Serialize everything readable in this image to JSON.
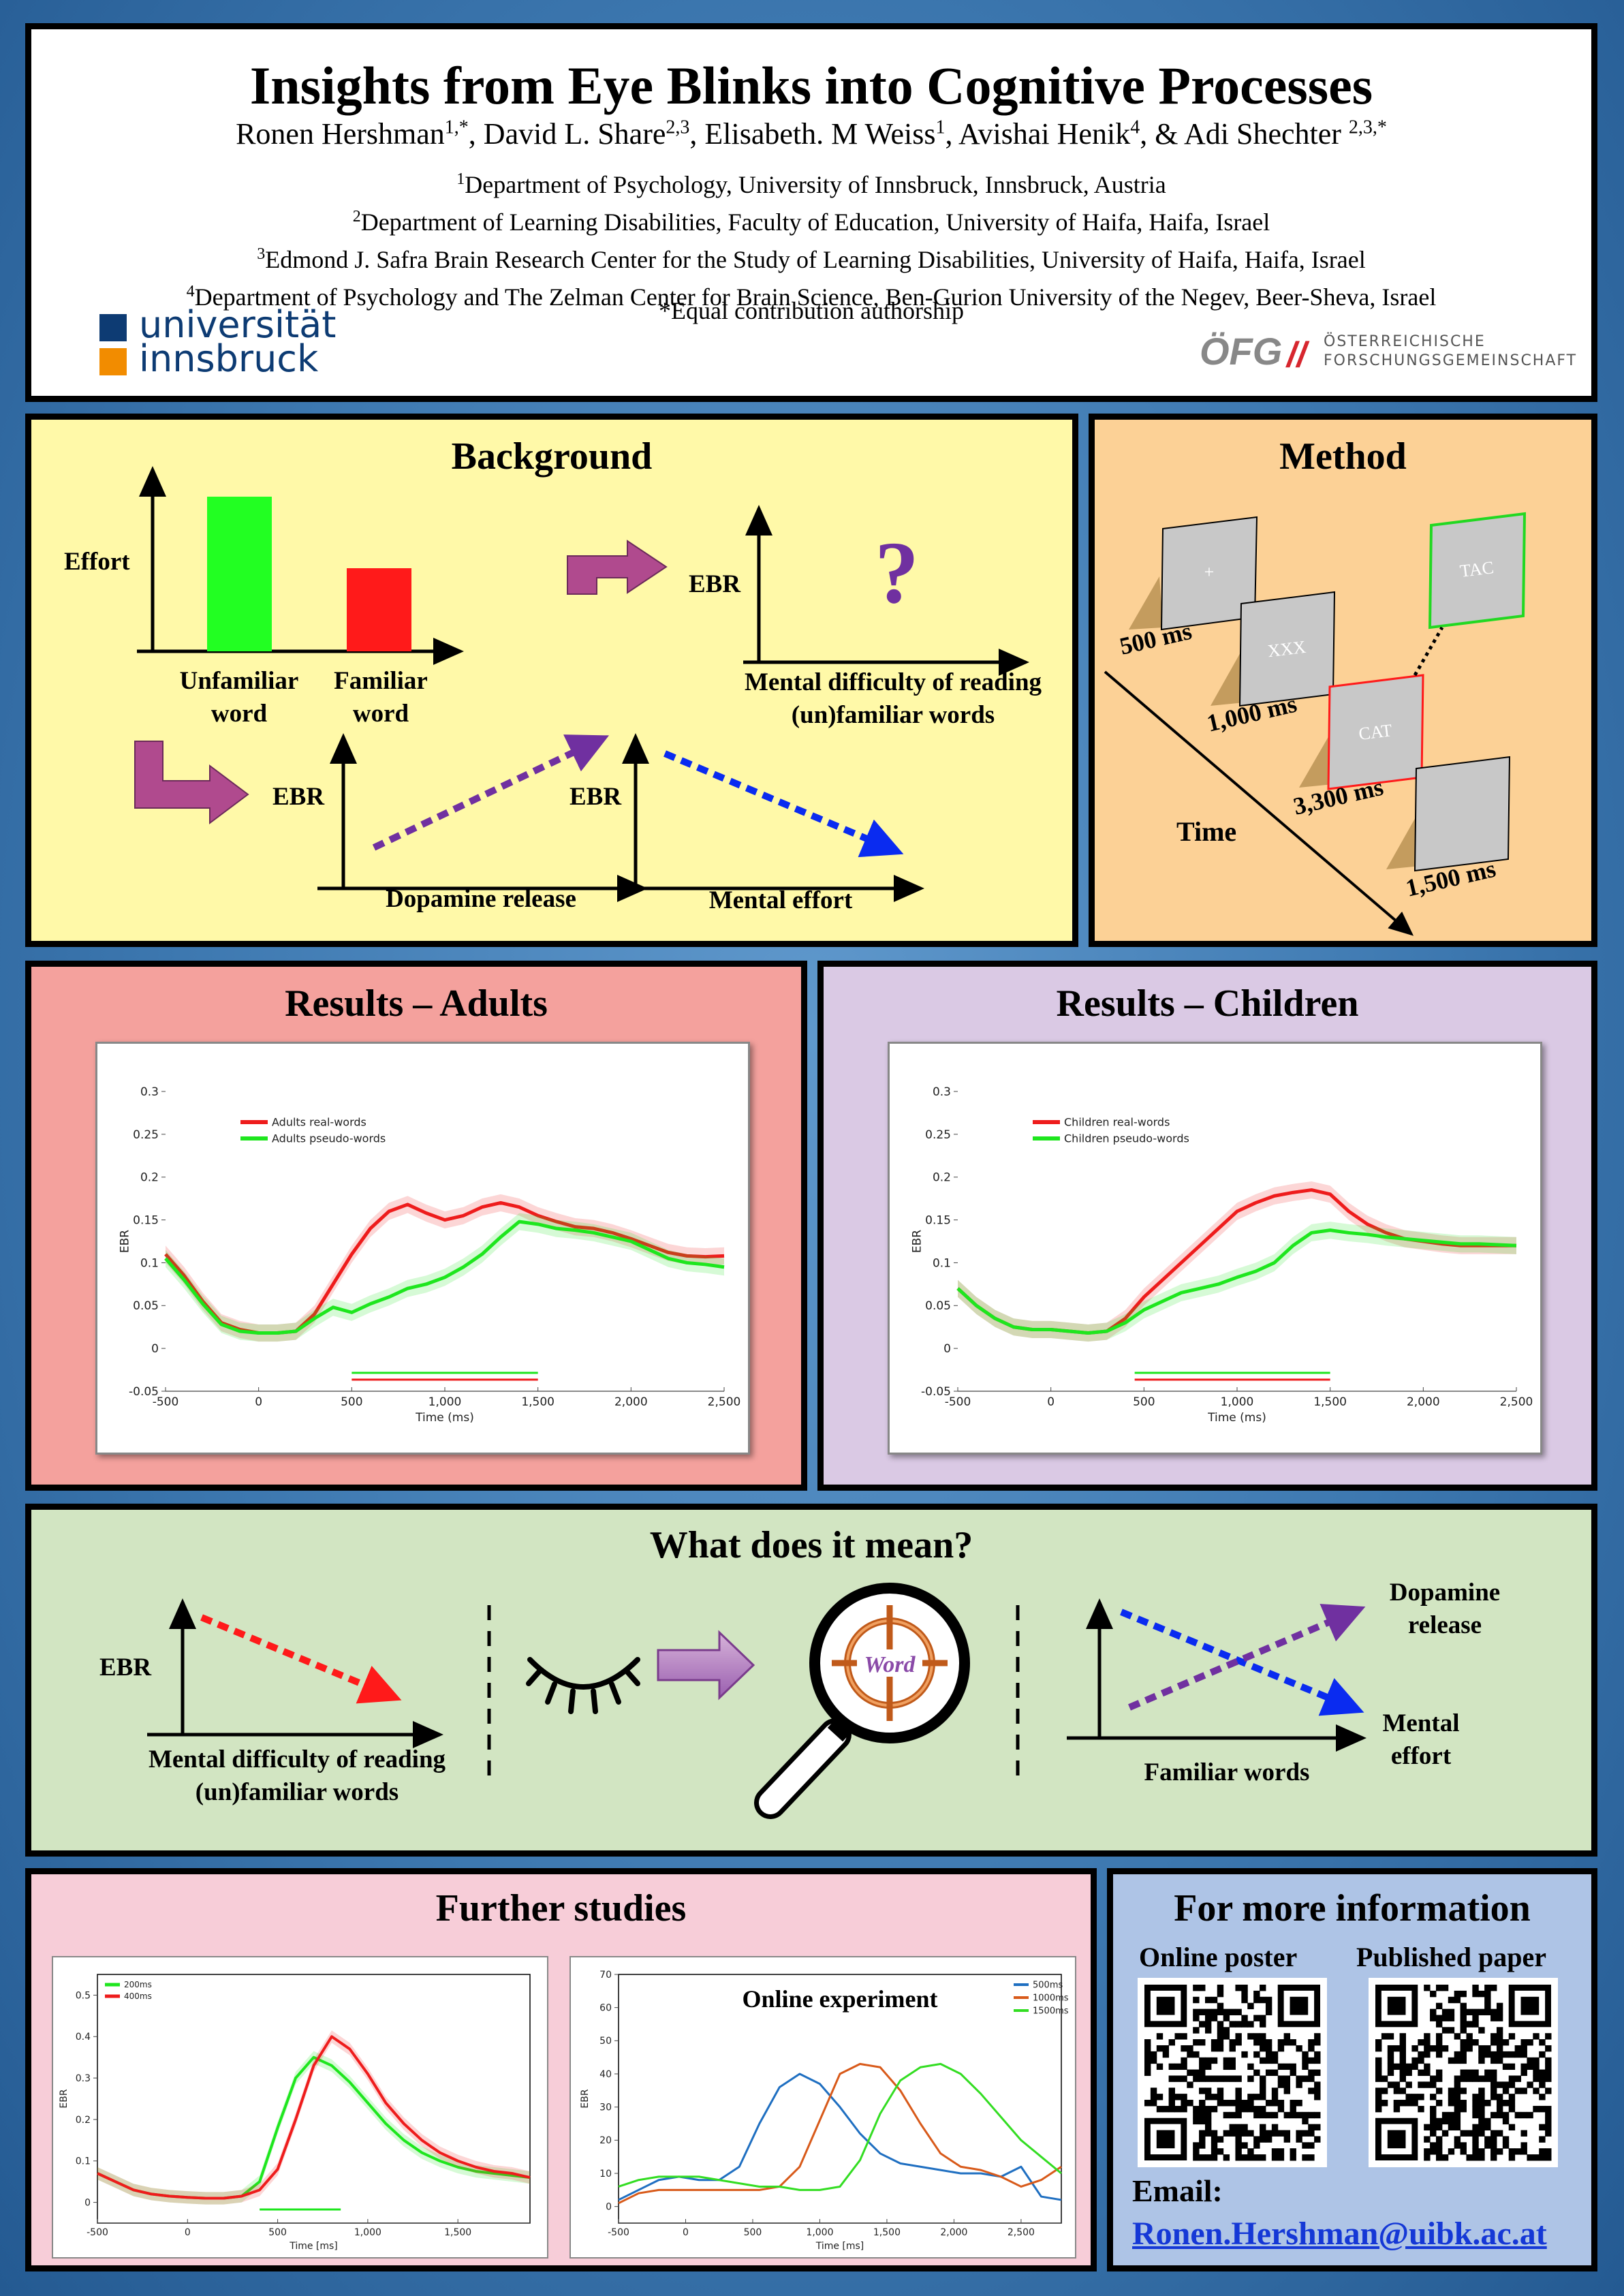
{
  "header": {
    "title": "Insights from Eye Blinks into Cognitive Processes",
    "authors": [
      {
        "name": "Ronen Hershman",
        "sup": "1,*"
      },
      {
        "name": "David L. Share",
        "sup": "2,3"
      },
      {
        "name": "Elisabeth. M Weiss",
        "sup": "1"
      },
      {
        "name": "Avishai Henik",
        "sup": "4"
      },
      {
        "name": "Adi Shechter ",
        "sup": "2,3,*"
      }
    ],
    "affiliations": [
      {
        "sup": "1",
        "text": "Department of Psychology, University of Innsbruck, Innsbruck, Austria"
      },
      {
        "sup": "2",
        "text": "Department of Learning Disabilities, Faculty of Education, University of Haifa, Haifa, Israel"
      },
      {
        "sup": "3",
        "text": "Edmond J. Safra Brain Research Center for the Study of Learning Disabilities, University of Haifa, Haifa, Israel"
      },
      {
        "sup": "4",
        "text": "Department of Psychology and The Zelman Center for Brain Science, Ben-Gurion University of the Negev, Beer-Sheva, Israel"
      }
    ],
    "equal": "*Equal contribution authorship",
    "logo_left": {
      "line1": "universität",
      "line2": "innsbruck"
    },
    "logo_right": {
      "mark": "ÖFG",
      "line1": "ÖSTERREICHISCHE",
      "line2": "FORSCHUNGSGEMEINSCHAFT"
    }
  },
  "background": {
    "title": "Background",
    "effort_label": "Effort",
    "bar1_label": "Unfamiliar word",
    "bar2_label": "Familiar word",
    "ebr": "EBR",
    "question": "?",
    "mental_difficulty": "Mental difficulty of reading (un)familiar words",
    "dopamine": "Dopamine release",
    "mental_effort": "Mental effort"
  },
  "method": {
    "title": "Method",
    "screens": [
      "+",
      "XXX",
      "CAT",
      "",
      "TAC"
    ],
    "durations": [
      "500 ms",
      "1,000 ms",
      "3,300 ms",
      "1,500 ms"
    ],
    "time": "Time"
  },
  "results_adults": {
    "title": "Results – Adults",
    "chart_data": {
      "type": "line",
      "xlabel": "Time (ms)",
      "ylabel": "EBR",
      "xlim": [
        -500,
        2500
      ],
      "ylim": [
        -0.05,
        0.3
      ],
      "xticks": [
        "-500",
        "0",
        "500",
        "1,000",
        "1,500",
        "2,000",
        "2,500"
      ],
      "yticks": [
        "-0.05",
        "0",
        "0.05",
        "0.1",
        "0.15",
        "0.2",
        "0.25",
        "0.3"
      ],
      "x": [
        -500,
        -400,
        -300,
        -200,
        -100,
        0,
        100,
        200,
        300,
        400,
        500,
        600,
        700,
        800,
        900,
        1000,
        1100,
        1200,
        1300,
        1400,
        1500,
        1600,
        1700,
        1800,
        1900,
        2000,
        2100,
        2200,
        2300,
        2400,
        2500
      ],
      "series": [
        {
          "name": "Adults real-words",
          "color": "#ee1c1c",
          "values": [
            0.11,
            0.085,
            0.055,
            0.03,
            0.022,
            0.018,
            0.018,
            0.02,
            0.04,
            0.075,
            0.11,
            0.14,
            0.16,
            0.168,
            0.158,
            0.15,
            0.155,
            0.165,
            0.17,
            0.165,
            0.155,
            0.148,
            0.142,
            0.14,
            0.135,
            0.128,
            0.12,
            0.112,
            0.108,
            0.107,
            0.108
          ]
        },
        {
          "name": "Adults pseudo-words",
          "color": "#1ee61e",
          "values": [
            0.105,
            0.08,
            0.052,
            0.028,
            0.02,
            0.018,
            0.018,
            0.02,
            0.035,
            0.048,
            0.042,
            0.052,
            0.06,
            0.07,
            0.075,
            0.083,
            0.095,
            0.11,
            0.13,
            0.148,
            0.145,
            0.14,
            0.138,
            0.135,
            0.13,
            0.125,
            0.115,
            0.105,
            0.1,
            0.098,
            0.095
          ]
        }
      ]
    }
  },
  "results_children": {
    "title": "Results –  Children",
    "chart_data": {
      "type": "line",
      "xlabel": "Time (ms)",
      "ylabel": "EBR",
      "xlim": [
        -500,
        2500
      ],
      "ylim": [
        -0.05,
        0.3
      ],
      "xticks": [
        "-500",
        "0",
        "500",
        "1,000",
        "1,500",
        "2,000",
        "2,500"
      ],
      "yticks": [
        "-0.05",
        "0",
        "0.05",
        "0.1",
        "0.15",
        "0.2",
        "0.25",
        "0.3"
      ],
      "x": [
        -500,
        -400,
        -300,
        -200,
        -100,
        0,
        100,
        200,
        300,
        400,
        500,
        600,
        700,
        800,
        900,
        1000,
        1100,
        1200,
        1300,
        1400,
        1500,
        1600,
        1700,
        1800,
        1900,
        2000,
        2100,
        2200,
        2300,
        2400,
        2500
      ],
      "series": [
        {
          "name": "Children real-words",
          "color": "#ee1c1c",
          "values": [
            0.07,
            0.05,
            0.035,
            0.025,
            0.022,
            0.022,
            0.02,
            0.018,
            0.02,
            0.035,
            0.06,
            0.08,
            0.1,
            0.12,
            0.14,
            0.16,
            0.17,
            0.178,
            0.182,
            0.185,
            0.18,
            0.16,
            0.145,
            0.135,
            0.128,
            0.125,
            0.122,
            0.12,
            0.12,
            0.12,
            0.12
          ]
        },
        {
          "name": "Children pseudo-words",
          "color": "#1ee61e",
          "values": [
            0.07,
            0.05,
            0.035,
            0.025,
            0.022,
            0.022,
            0.02,
            0.018,
            0.02,
            0.03,
            0.045,
            0.055,
            0.065,
            0.07,
            0.075,
            0.083,
            0.09,
            0.1,
            0.12,
            0.135,
            0.138,
            0.135,
            0.133,
            0.13,
            0.128,
            0.126,
            0.124,
            0.122,
            0.122,
            0.121,
            0.12
          ]
        }
      ]
    }
  },
  "meaning": {
    "title": "What does it mean?",
    "ebr": "EBR",
    "mental_difficulty": "Mental difficulty of reading (un)familiar words",
    "word": "Word",
    "dopamine": "Dopamine release",
    "mental_effort": "Mental effort",
    "familiar": "Familiar words"
  },
  "further": {
    "title": "Further studies",
    "chart_data": [
      {
        "type": "line",
        "xlabel": "Time [ms]",
        "ylabel": "EBR",
        "xlim": [
          -500,
          1900
        ],
        "ylim": [
          -0.05,
          0.55
        ],
        "xticks": [
          "-500",
          "0",
          "500",
          "1,000",
          "1,500"
        ],
        "yticks": [
          "0",
          "0.1",
          "0.2",
          "0.3",
          "0.4",
          "0.5"
        ],
        "x": [
          -500,
          -400,
          -300,
          -200,
          -100,
          0,
          100,
          200,
          300,
          400,
          500,
          600,
          700,
          800,
          900,
          1000,
          1100,
          1200,
          1300,
          1400,
          1500,
          1600,
          1700,
          1800,
          1900
        ],
        "series": [
          {
            "name": "200ms",
            "color": "#1ee61e",
            "values": [
              0.07,
              0.05,
              0.03,
              0.02,
              0.015,
              0.012,
              0.01,
              0.01,
              0.015,
              0.05,
              0.18,
              0.3,
              0.35,
              0.33,
              0.29,
              0.24,
              0.19,
              0.15,
              0.12,
              0.1,
              0.085,
              0.075,
              0.07,
              0.065,
              0.06
            ]
          },
          {
            "name": "400ms",
            "color": "#ee1c1c",
            "values": [
              0.07,
              0.05,
              0.03,
              0.02,
              0.015,
              0.012,
              0.01,
              0.01,
              0.015,
              0.03,
              0.08,
              0.2,
              0.33,
              0.4,
              0.37,
              0.31,
              0.24,
              0.19,
              0.15,
              0.12,
              0.1,
              0.085,
              0.075,
              0.07,
              0.06
            ]
          }
        ]
      },
      {
        "type": "line",
        "title": "Online experiment",
        "xlabel": "Time [ms]",
        "ylabel": "EBR",
        "xlim": [
          -500,
          2800
        ],
        "ylim": [
          -5,
          70
        ],
        "xticks": [
          "-500",
          "0",
          "500",
          "1,000",
          "1,500",
          "2,000",
          "2,500"
        ],
        "yticks": [
          "0",
          "10",
          "20",
          "30",
          "40",
          "50",
          "60",
          "70"
        ],
        "x": [
          -500,
          -350,
          -200,
          -50,
          100,
          250,
          400,
          550,
          700,
          850,
          1000,
          1150,
          1300,
          1450,
          1600,
          1750,
          1900,
          2050,
          2200,
          2350,
          2500,
          2650,
          2800
        ],
        "series": [
          {
            "name": "500ms",
            "color": "#1f6fc1",
            "values": [
              2,
              5,
              8,
              9,
              8,
              8,
              12,
              25,
              36,
              40,
              37,
              30,
              22,
              16,
              13,
              12,
              11,
              10,
              10,
              9,
              12,
              3,
              2
            ]
          },
          {
            "name": "1000ms",
            "color": "#d85a1a",
            "values": [
              1,
              4,
              5,
              5,
              5,
              5,
              5,
              5,
              6,
              12,
              26,
              40,
              43,
              42,
              35,
              25,
              16,
              12,
              11,
              9,
              6,
              8,
              12
            ]
          },
          {
            "name": "1500ms",
            "color": "#33dd22",
            "values": [
              6,
              8,
              9,
              9,
              9,
              8,
              7,
              6,
              6,
              5,
              5,
              6,
              14,
              28,
              38,
              42,
              43,
              40,
              34,
              27,
              20,
              15,
              10
            ]
          }
        ]
      }
    ]
  },
  "more_info": {
    "title": "For more information",
    "online_poster": "Online poster",
    "published_paper": "Published paper",
    "email_label": "Email:",
    "email": "Ronen.Hershman@uibk.ac.at"
  }
}
